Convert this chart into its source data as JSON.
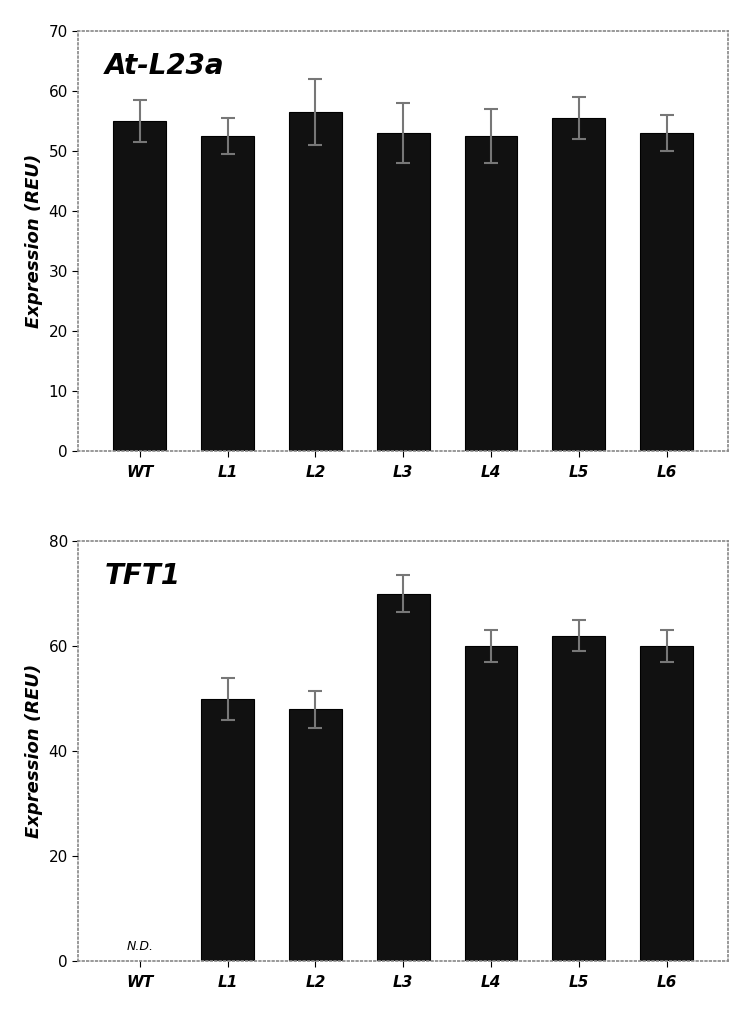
{
  "chart1": {
    "title": "At-L23a",
    "categories": [
      "WT",
      "L1",
      "L2",
      "L3",
      "L4",
      "L5",
      "L6"
    ],
    "values": [
      55.0,
      52.5,
      56.5,
      53.0,
      52.5,
      55.5,
      53.0
    ],
    "errors": [
      3.5,
      3.0,
      5.5,
      5.0,
      4.5,
      3.5,
      3.0
    ],
    "ylim": [
      0,
      70
    ],
    "yticks": [
      0,
      10,
      20,
      30,
      40,
      50,
      60,
      70
    ],
    "ylabel": "Expression (REU)",
    "bar_color": "#111111",
    "error_color": "#777777"
  },
  "chart2": {
    "title": "TFT1",
    "categories": [
      "WT",
      "L1",
      "L2",
      "L3",
      "L4",
      "L5",
      "L6"
    ],
    "values": [
      0,
      50.0,
      48.0,
      70.0,
      60.0,
      62.0,
      60.0
    ],
    "errors": [
      0,
      4.0,
      3.5,
      3.5,
      3.0,
      3.0,
      3.0
    ],
    "wt_label": "N.D.",
    "ylim": [
      0,
      80
    ],
    "yticks": [
      0,
      20,
      40,
      60,
      80
    ],
    "ylabel": "Expression (REU)",
    "bar_color": "#111111",
    "error_color": "#777777"
  },
  "bg_color": "#ffffff",
  "plot_bg_color": "#ffffff",
  "fig_width": 7.53,
  "fig_height": 10.15,
  "border_color": "#aaaaaa",
  "tick_label_fontsize": 11,
  "ylabel_fontsize": 13,
  "title_fontsize": 20,
  "nd_fontsize": 9
}
